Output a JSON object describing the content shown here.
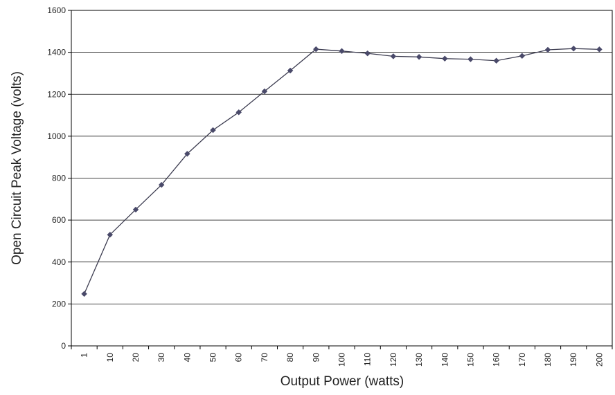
{
  "chart_data": {
    "type": "line",
    "title": "",
    "xlabel": "Output Power (watts)",
    "ylabel": "Open Circuit Peak Voltage (volts)",
    "categories": [
      "1",
      "10",
      "20",
      "30",
      "40",
      "50",
      "60",
      "70",
      "80",
      "90",
      "100",
      "110",
      "120",
      "130",
      "140",
      "150",
      "160",
      "170",
      "180",
      "190",
      "200"
    ],
    "series": [
      {
        "values": [
          248,
          530,
          650,
          768,
          916,
          1029,
          1114,
          1214,
          1313,
          1415,
          1406,
          1395,
          1381,
          1378,
          1370,
          1367,
          1360,
          1383,
          1412,
          1418,
          1414
        ]
      }
    ],
    "ylim": [
      0,
      1600
    ],
    "yticks": [
      0,
      200,
      400,
      600,
      800,
      1000,
      1200,
      1400,
      1600
    ],
    "grid": "horizontal",
    "legend": "none",
    "colors": {
      "line": "#3b3b4f",
      "marker": "#4a4a6a",
      "grid": "#000000",
      "axis": "#000000"
    }
  }
}
